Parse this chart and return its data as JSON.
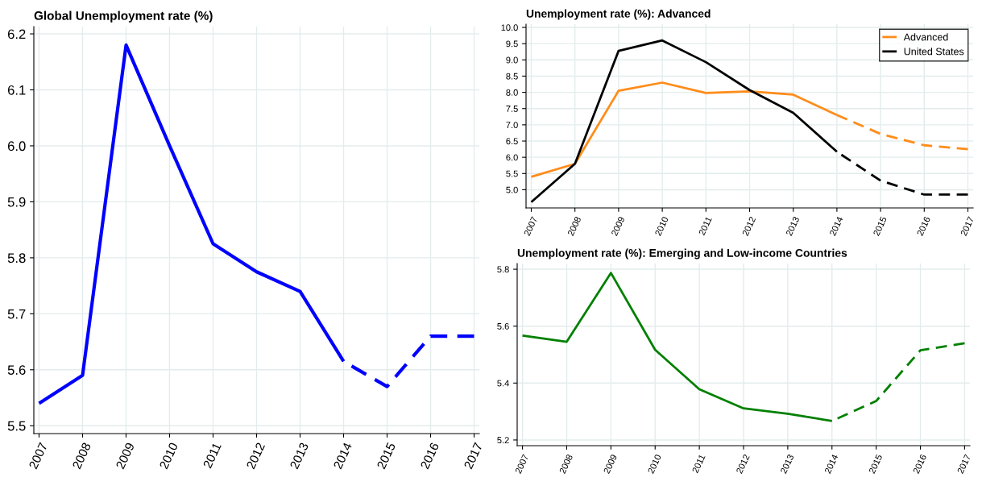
{
  "chart_data": [
    {
      "type": "line",
      "title": "Global Unemployment rate (%)",
      "categories": [
        "2007",
        "2008",
        "2009",
        "2010",
        "2011",
        "2012",
        "2013",
        "2014",
        "2015",
        "2016",
        "2017"
      ],
      "series": [
        {
          "color": "#0000ff",
          "line_style": "solid",
          "values": [
            5.54,
            5.59,
            6.18,
            6.0,
            5.825,
            5.775,
            5.74,
            5.615,
            null,
            null,
            null
          ]
        },
        {
          "color": "#0000ff",
          "line_style": "dashed",
          "values": [
            null,
            null,
            null,
            null,
            null,
            null,
            null,
            5.615,
            5.57,
            5.66,
            5.66
          ]
        }
      ],
      "ylim": [
        5.486,
        6.213
      ],
      "yticks": [
        5.5,
        5.6,
        5.7,
        5.8,
        5.9,
        {
          "value": 6,
          "label": "6.0"
        },
        6.1,
        6.2
      ],
      "grid": true,
      "legend": false
    },
    {
      "type": "line",
      "title": "Unemployment rate (%): Advanced",
      "categories": [
        "2007",
        "2008",
        "2009",
        "2010",
        "2011",
        "2012",
        "2013",
        "2014",
        "2015",
        "2016",
        "2017"
      ],
      "series": [
        {
          "name": "Advanced",
          "color": "#ff8c1a",
          "line_style": "solid",
          "values": [
            5.4,
            5.8,
            8.05,
            8.3,
            7.98,
            8.03,
            7.93,
            7.3,
            null,
            null,
            null
          ]
        },
        {
          "color": "#ff8c1a",
          "line_style": "dashed",
          "values": [
            null,
            null,
            null,
            null,
            null,
            null,
            null,
            7.3,
            6.72,
            6.37,
            6.25
          ]
        },
        {
          "name": "United States",
          "color": "#000000",
          "line_style": "solid",
          "values": [
            4.62,
            5.8,
            9.28,
            9.6,
            8.93,
            8.07,
            7.37,
            6.17,
            null,
            null,
            null
          ]
        },
        {
          "color": "#000000",
          "line_style": "dashed",
          "values": [
            null,
            null,
            null,
            null,
            null,
            null,
            null,
            6.17,
            5.28,
            4.85,
            4.85
          ]
        }
      ],
      "ylim": [
        4.44,
        10.1
      ],
      "yticks": [
        {
          "value": 5,
          "label": "5.0"
        },
        5.5,
        {
          "value": 6,
          "label": "6.0"
        },
        6.5,
        {
          "value": 7,
          "label": "7.0"
        },
        7.5,
        {
          "value": 8,
          "label": "8.0"
        },
        8.5,
        {
          "value": 9,
          "label": "9.0"
        },
        9.5,
        {
          "value": 10,
          "label": "10.0"
        }
      ],
      "grid": true,
      "legend": "top right"
    },
    {
      "type": "line",
      "title": "Unemployment rate (%): Emerging and Low-income Countries",
      "categories": [
        "2007",
        "2008",
        "2009",
        "2010",
        "2011",
        "2012",
        "2013",
        "2014",
        "2015",
        "2016",
        "2017"
      ],
      "series": [
        {
          "color": "#008000",
          "line_style": "solid",
          "values": [
            5.567,
            5.545,
            5.787,
            5.517,
            5.378,
            5.311,
            5.292,
            5.267,
            null,
            null,
            null
          ]
        },
        {
          "color": "#008000",
          "line_style": "dashed",
          "values": [
            null,
            null,
            null,
            null,
            null,
            null,
            null,
            5.267,
            5.337,
            5.515,
            5.54
          ]
        }
      ],
      "ylim": [
        5.18,
        5.82
      ],
      "yticks": [
        5.2,
        5.4,
        5.6,
        5.8
      ],
      "grid": true,
      "legend": false
    }
  ]
}
